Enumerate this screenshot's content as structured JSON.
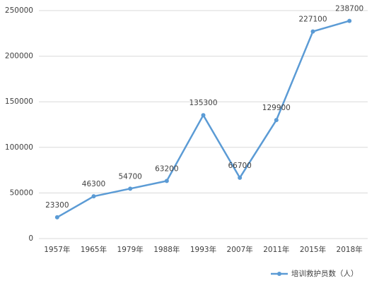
{
  "chart_data": {
    "type": "line",
    "categories": [
      "1957年",
      "1965年",
      "1979年",
      "1988年",
      "1993年",
      "2007年",
      "2011年",
      "2015年",
      "2018年"
    ],
    "series": [
      {
        "name": "培训救护员数（人）",
        "color": "#5b9bd5",
        "values": [
          23300,
          46300,
          54700,
          63200,
          135300,
          66700,
          129900,
          227100,
          238700
        ]
      }
    ],
    "ylim": [
      0,
      250000
    ],
    "yticks": [
      0,
      50000,
      100000,
      150000,
      200000,
      250000
    ],
    "grid": true,
    "legend": "bottom-right",
    "data_labels": true
  }
}
